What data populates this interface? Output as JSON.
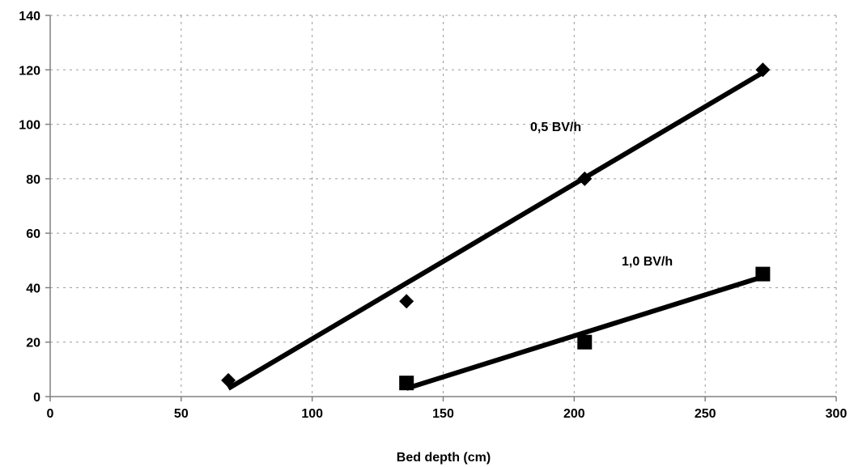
{
  "chart_data": {
    "type": "scatter",
    "title": "",
    "xlabel": "Bed depth (cm)",
    "ylabel": "",
    "xlim": [
      0,
      300
    ],
    "ylim": [
      0,
      140
    ],
    "xticks": [
      0,
      50,
      100,
      150,
      200,
      250,
      300
    ],
    "yticks": [
      0,
      20,
      40,
      60,
      80,
      100,
      120,
      140
    ],
    "grid": true,
    "legend": "none",
    "series": [
      {
        "name": "0,5 BV/h",
        "marker": "diamond",
        "points": [
          [
            68,
            6
          ],
          [
            136,
            35
          ],
          [
            204,
            80
          ],
          [
            272,
            120
          ]
        ],
        "trendline": [
          [
            68,
            3
          ],
          [
            272,
            119
          ]
        ],
        "color": "#000000"
      },
      {
        "name": "1,0 BV/h",
        "marker": "square",
        "points": [
          [
            136,
            5
          ],
          [
            204,
            20
          ],
          [
            272,
            45
          ]
        ],
        "trendline": [
          [
            136,
            3
          ],
          [
            272,
            44
          ]
        ],
        "color": "#000000"
      }
    ]
  }
}
